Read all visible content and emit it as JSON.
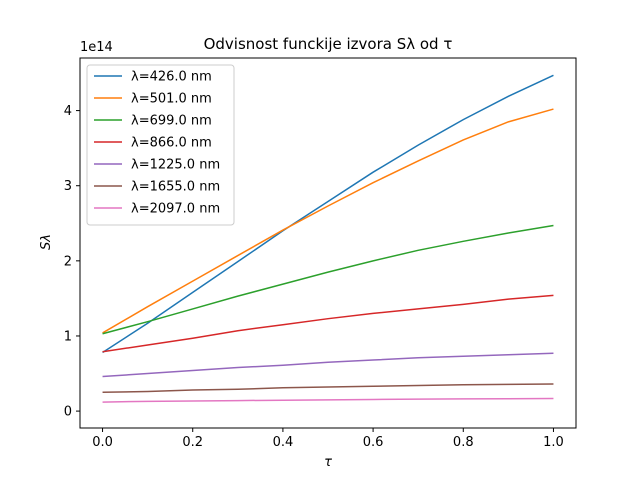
{
  "chart_data": {
    "type": "line",
    "title": "Odvisnost funckije izvora Sλ od τ",
    "xlabel": "τ",
    "ylabel": "Sλ",
    "offset_label": "1e14",
    "xlim": [
      -0.05,
      1.05
    ],
    "ylim": [
      -0.225,
      4.7
    ],
    "x_ticks": [
      0.0,
      0.2,
      0.4,
      0.6,
      0.8,
      1.0
    ],
    "x_tick_labels": [
      "0.0",
      "0.2",
      "0.4",
      "0.6",
      "0.8",
      "1.0"
    ],
    "y_ticks": [
      0,
      1,
      2,
      3,
      4
    ],
    "y_tick_labels": [
      "0",
      "1",
      "2",
      "3",
      "4"
    ],
    "grid": false,
    "legend_position": "top-left",
    "x": [
      0.0,
      0.1,
      0.2,
      0.3,
      0.4,
      0.5,
      0.6,
      0.7,
      0.8,
      0.9,
      1.0
    ],
    "series": [
      {
        "name": "λ=426.0 nm",
        "color": "#1f77b4",
        "values": [
          0.78,
          1.17,
          1.58,
          1.99,
          2.4,
          2.79,
          3.18,
          3.54,
          3.88,
          4.19,
          4.47
        ]
      },
      {
        "name": "λ=501.0 nm",
        "color": "#ff7f0e",
        "values": [
          1.04,
          1.39,
          1.73,
          2.07,
          2.41,
          2.73,
          3.04,
          3.33,
          3.61,
          3.85,
          4.02
        ]
      },
      {
        "name": "λ=699.0 nm",
        "color": "#2ca02c",
        "values": [
          1.03,
          1.19,
          1.36,
          1.53,
          1.69,
          1.85,
          2.0,
          2.14,
          2.26,
          2.37,
          2.47
        ]
      },
      {
        "name": "λ=866.0 nm",
        "color": "#d62728",
        "values": [
          0.79,
          0.88,
          0.97,
          1.07,
          1.15,
          1.23,
          1.3,
          1.36,
          1.42,
          1.49,
          1.54
        ]
      },
      {
        "name": "λ=1225.0 nm",
        "color": "#9467bd",
        "values": [
          0.46,
          0.5,
          0.54,
          0.58,
          0.61,
          0.65,
          0.68,
          0.71,
          0.73,
          0.75,
          0.77
        ]
      },
      {
        "name": "λ=1655.0 nm",
        "color": "#8c564b",
        "values": [
          0.25,
          0.26,
          0.28,
          0.29,
          0.31,
          0.32,
          0.33,
          0.34,
          0.35,
          0.355,
          0.36
        ]
      },
      {
        "name": "λ=2097.0 nm",
        "color": "#e377c2",
        "values": [
          0.12,
          0.13,
          0.135,
          0.14,
          0.145,
          0.15,
          0.155,
          0.16,
          0.163,
          0.165,
          0.167
        ]
      }
    ]
  }
}
